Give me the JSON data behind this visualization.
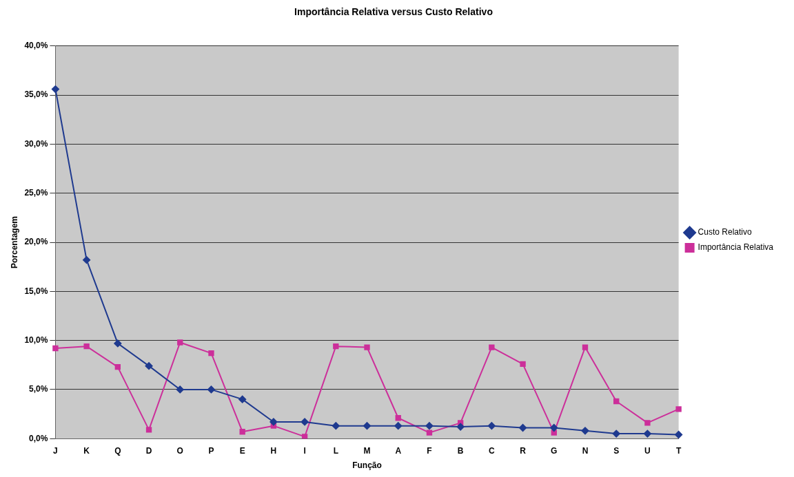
{
  "chart_data": {
    "type": "line",
    "title": "Importância Relativa versus Custo Relativo",
    "xlabel": "Função",
    "ylabel": "Porcentagem",
    "categories": [
      "J",
      "K",
      "Q",
      "D",
      "O",
      "P",
      "E",
      "H",
      "I",
      "L",
      "M",
      "A",
      "F",
      "B",
      "C",
      "R",
      "G",
      "N",
      "S",
      "U",
      "T"
    ],
    "series": [
      {
        "name": "Custo Relativo",
        "color": "#1f3a8f",
        "marker": "diamond",
        "values": [
          35.6,
          18.2,
          9.7,
          7.4,
          5.0,
          5.0,
          4.0,
          1.7,
          1.7,
          1.3,
          1.3,
          1.3,
          1.3,
          1.2,
          1.3,
          1.1,
          1.1,
          0.8,
          0.5,
          0.5,
          0.4
        ]
      },
      {
        "name": "Importância Relativa",
        "color": "#cc2f9a",
        "marker": "square",
        "values": [
          9.2,
          9.4,
          7.3,
          0.9,
          9.8,
          8.7,
          0.7,
          1.3,
          0.2,
          9.4,
          9.3,
          2.1,
          0.6,
          1.6,
          9.3,
          7.6,
          0.6,
          9.3,
          3.8,
          1.6,
          3.0
        ]
      }
    ],
    "ylim": [
      0,
      40
    ],
    "yticks": [
      {
        "value": 0,
        "label": "0,0%"
      },
      {
        "value": 5,
        "label": "5,0%"
      },
      {
        "value": 10,
        "label": "10,0%"
      },
      {
        "value": 15,
        "label": "15,0%"
      },
      {
        "value": 20,
        "label": "20,0%"
      },
      {
        "value": 25,
        "label": "25,0%"
      },
      {
        "value": 30,
        "label": "30,0%"
      },
      {
        "value": 35,
        "label": "35,0%"
      },
      {
        "value": 40,
        "label": "40,0%"
      }
    ],
    "grid": "y",
    "legend": "right",
    "line_style": "solid"
  }
}
